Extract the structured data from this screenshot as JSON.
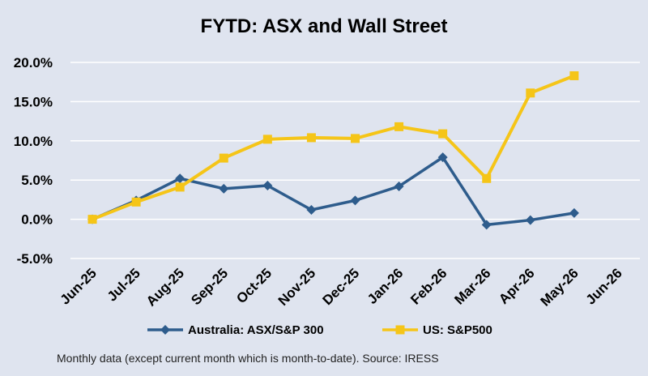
{
  "chart_data": {
    "type": "line",
    "title": "FYTD: ASX and Wall Street",
    "xlabel": "",
    "ylabel": "",
    "categories": [
      "Jun-25",
      "Jul-25",
      "Aug-25",
      "Sep-25",
      "Oct-25",
      "Nov-25",
      "Dec-25",
      "Jan-26",
      "Feb-26",
      "Mar-26",
      "Apr-26",
      "May-26",
      "Jun-26"
    ],
    "y_tick_labels": [
      "20.0%",
      "15.0%",
      "10.0%",
      "5.0%",
      "0.0%",
      "-5.0%"
    ],
    "y_ticks": [
      20,
      15,
      10,
      5,
      0,
      -5
    ],
    "ylim": [
      -5,
      20
    ],
    "grid": true,
    "legend_position": "bottom",
    "series": [
      {
        "name": "Australia: ASX/S&P 300",
        "color": "#2e5c8c",
        "marker": "diamond",
        "values": [
          0.0,
          2.4,
          5.2,
          3.9,
          4.3,
          1.2,
          2.4,
          4.2,
          7.9,
          -0.7,
          -0.1,
          0.8,
          null
        ]
      },
      {
        "name": "US: S&P500",
        "color": "#f5c518",
        "marker": "square",
        "values": [
          0.0,
          2.2,
          4.1,
          7.8,
          10.2,
          10.4,
          10.3,
          11.8,
          10.9,
          5.2,
          16.1,
          18.3,
          null
        ]
      }
    ],
    "footnote": "Monthly data (except current month which is month-to-date).  Source: IRESS"
  }
}
